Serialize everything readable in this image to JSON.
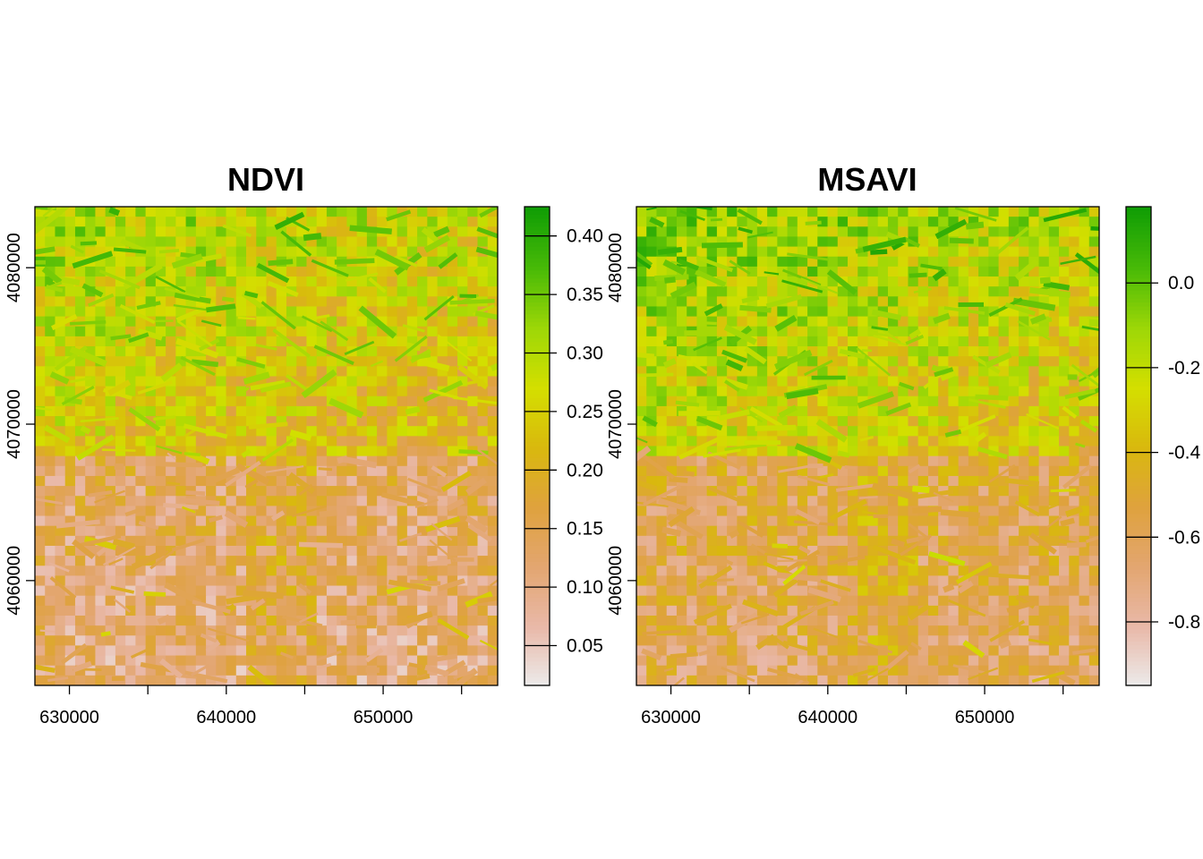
{
  "colors": {
    "ramp": [
      "#ECECEC",
      "#E9B9A9",
      "#E3A671",
      "#DFA23E",
      "#D9B80E",
      "#D4DF00",
      "#9DD707",
      "#48BA07",
      "#109D05"
    ],
    "frame": "#000000",
    "background": "#FFFFFF"
  },
  "chart_data": [
    {
      "type": "heatmap",
      "title": "NDVI",
      "xlabel": "",
      "ylabel": "",
      "xlim": [
        627800,
        657300
      ],
      "ylim": [
        4053300,
        4083900
      ],
      "x_ticks": [
        630000,
        635000,
        640000,
        645000,
        650000,
        655000
      ],
      "x_tick_labels": [
        "630000",
        "",
        "640000",
        "",
        "650000",
        ""
      ],
      "y_ticks": [
        4060000,
        4070000,
        4080000
      ],
      "y_tick_labels": [
        "4060000",
        "4070000",
        "4080000"
      ],
      "value_range": [
        0.016,
        0.425
      ],
      "legend_ticks": [
        0.05,
        0.1,
        0.15,
        0.2,
        0.25,
        0.3,
        0.35,
        0.4
      ],
      "legend_labels": [
        "0.05",
        "0.10",
        "0.15",
        "0.20",
        "0.25",
        "0.30",
        "0.35",
        "0.40"
      ],
      "legend_position": "right",
      "pattern_note": "greener north half, orange/pink south half"
    },
    {
      "type": "heatmap",
      "title": "MSAVI",
      "xlabel": "",
      "ylabel": "",
      "xlim": [
        627800,
        657300
      ],
      "ylim": [
        4053300,
        4083900
      ],
      "x_ticks": [
        630000,
        635000,
        640000,
        645000,
        650000,
        655000
      ],
      "x_tick_labels": [
        "630000",
        "",
        "640000",
        "",
        "650000",
        ""
      ],
      "y_ticks": [
        4060000,
        4070000,
        4080000
      ],
      "y_tick_labels": [
        "4060000",
        "4070000",
        "4080000"
      ],
      "value_range": [
        -0.95,
        0.18
      ],
      "legend_ticks": [
        -0.8,
        -0.6,
        -0.4,
        -0.2,
        0.0
      ],
      "legend_labels": [
        "-0.8",
        "-0.6",
        "-0.4",
        "-0.2",
        "0.0"
      ],
      "legend_position": "right",
      "pattern_note": "greener north half, yellow/orange south half"
    }
  ]
}
